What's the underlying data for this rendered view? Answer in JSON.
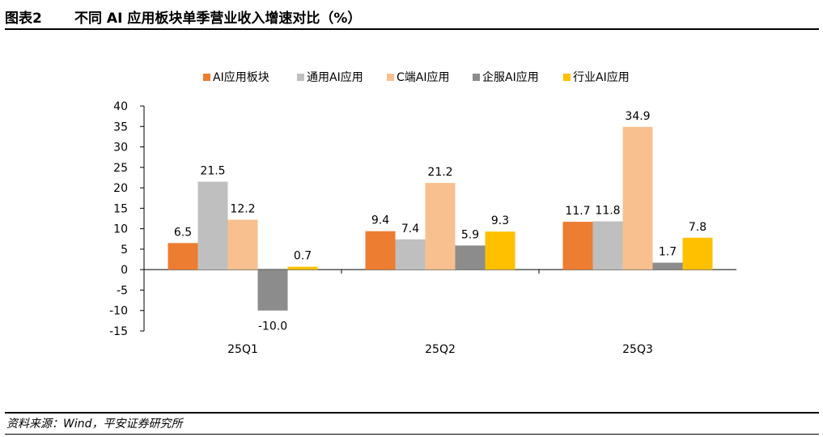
{
  "header": {
    "figure_label": "图表2",
    "title": "不同 AI 应用板块单季营业收入增速对比（%）"
  },
  "footer": {
    "source": "资料来源：Wind，平安证券研究所"
  },
  "colors": {
    "series": [
      "#ED7D31",
      "#BFBFBF",
      "#F8C08F",
      "#8C8C8C",
      "#FFC000"
    ]
  },
  "chart_data": {
    "type": "bar",
    "categories": [
      "25Q1",
      "25Q2",
      "25Q3"
    ],
    "series": [
      {
        "name": "AI应用板块",
        "values": [
          6.5,
          9.4,
          11.7
        ],
        "labels": [
          "6.5",
          "9.4",
          "11.7"
        ]
      },
      {
        "name": "通用AI应用",
        "values": [
          21.5,
          7.4,
          11.8
        ],
        "labels": [
          "21.5",
          "7.4",
          "11.8"
        ]
      },
      {
        "name": "C端AI应用",
        "values": [
          12.2,
          21.2,
          34.9
        ],
        "labels": [
          "12.2",
          "21.2",
          "34.9"
        ]
      },
      {
        "name": "企服AI应用",
        "values": [
          -10.0,
          5.9,
          1.7
        ],
        "labels": [
          "-10.0",
          "5.9",
          "1.7"
        ]
      },
      {
        "name": "行业AI应用",
        "values": [
          0.7,
          9.3,
          7.8
        ],
        "labels": [
          "0.7",
          "9.3",
          "7.8"
        ]
      }
    ],
    "yticks": [
      "40",
      "35",
      "30",
      "25",
      "20",
      "15",
      "10",
      "5",
      "0",
      "-5",
      "-10",
      "-15"
    ],
    "ylim": [
      -15,
      40
    ],
    "ystep": 5,
    "grid": false,
    "legend_position": "top"
  }
}
